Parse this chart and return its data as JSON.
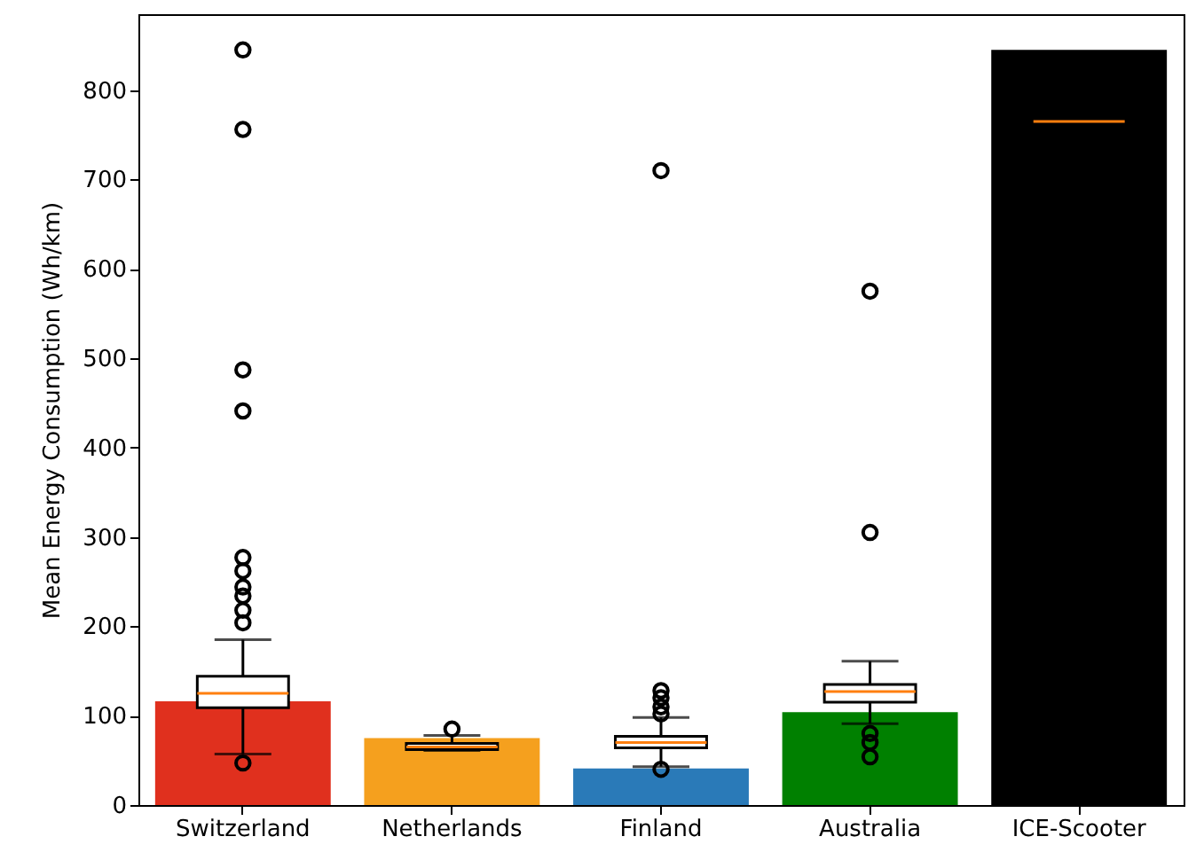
{
  "chart_data": {
    "type": "bar",
    "ylabel": "Mean Energy Consumption (Wh/km)",
    "categories": [
      "Switzerland",
      "Netherlands",
      "Finland",
      "Australia",
      "ICE-Scooter"
    ],
    "ylim": [
      0,
      885
    ],
    "yticks": [
      0,
      100,
      200,
      300,
      400,
      500,
      600,
      700,
      800
    ],
    "grid": false,
    "series": [
      {
        "type": "bar",
        "colors": [
          "#e0301e",
          "#f5a01e",
          "#2a7ab8",
          "#008000",
          "#000000"
        ],
        "values": [
          116,
          75,
          41,
          104,
          845
        ]
      },
      {
        "type": "box",
        "color": "#000000",
        "boxes": [
          {
            "low": 57,
            "q1": 109,
            "median": 125,
            "q3": 144,
            "high": 185,
            "outliers": [
              845,
              756,
              487,
              441,
              277,
              262,
              244,
              234,
              218,
              204,
              47
            ]
          },
          {
            "low": 61,
            "q1": 62,
            "median": 65,
            "q3": 69,
            "high": 78,
            "outliers": [
              85
            ]
          },
          {
            "low": 43,
            "q1": 64,
            "median": 70,
            "q3": 77,
            "high": 98,
            "outliers": [
              710,
              128,
              120,
              110,
              102,
              40
            ]
          },
          {
            "low": 91,
            "q1": 115,
            "median": 127,
            "q3": 135,
            "high": 161,
            "outliers": [
              575,
              305,
              80,
              70,
              54
            ]
          },
          {
            "low": 765,
            "q1": 765,
            "median": 765,
            "q3": 765,
            "high": 765
          }
        ]
      }
    ]
  }
}
